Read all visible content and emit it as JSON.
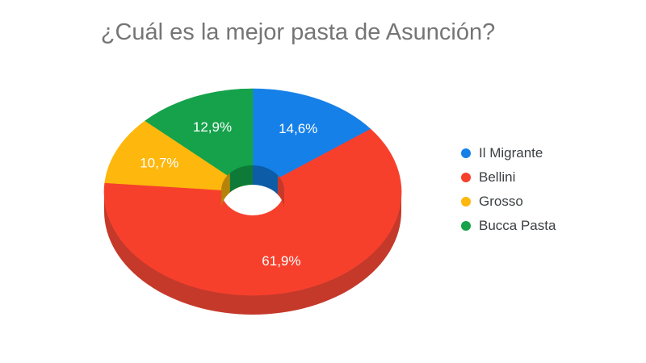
{
  "chart_data": {
    "type": "pie",
    "style": "3d-donut",
    "title": "¿Cuál es la mejor pasta de Asunción?",
    "title_color": "#757575",
    "background": "#ffffff",
    "legend_position": "right",
    "slice_label_color": "#ffffff",
    "legend_text_color": "#3c4043",
    "categories": [
      "Il Migrante",
      "Bellini",
      "Grosso",
      "Bucca Pasta"
    ],
    "values": [
      14.6,
      61.9,
      10.7,
      12.9
    ],
    "series": [
      {
        "label": "Il Migrante",
        "value": 14.6,
        "display": "14,6%",
        "color": "#1680E9",
        "dark_color": "#0D5CA8"
      },
      {
        "label": "Bellini",
        "value": 61.9,
        "display": "61,9%",
        "color": "#F7402C",
        "dark_color": "#C5392B"
      },
      {
        "label": "Grosso",
        "value": 10.7,
        "display": "10,7%",
        "color": "#FDB70D",
        "dark_color": "#B5830A"
      },
      {
        "label": "Bucca Pasta",
        "value": 12.9,
        "display": "12,9%",
        "color": "#15A24B",
        "dark_color": "#0E7A37"
      }
    ]
  }
}
